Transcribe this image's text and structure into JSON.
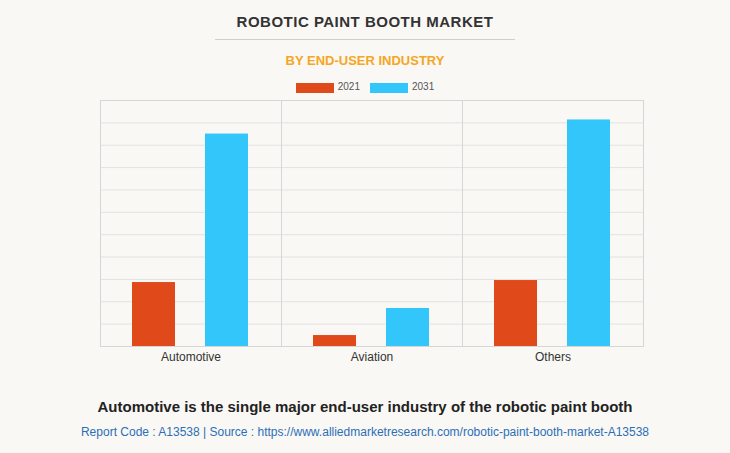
{
  "chart_data": {
    "type": "bar",
    "title": "ROBOTIC PAINT BOOTH MARKET",
    "subtitle": "BY END-USER INDUSTRY",
    "caption": "Automotive is the single major end-user industry of the robotic paint booth",
    "note": "Report Code : A13538  |  Source : https://www.alliedmarketresearch.com/robotic-paint-booth-market-A13538",
    "categories": [
      "Automotive",
      "Aviation",
      "Others"
    ],
    "series": [
      {
        "name": "2021",
        "color": "#e04a1a",
        "values": [
          2.86,
          0.49,
          2.95
        ]
      },
      {
        "name": "2031",
        "color": "#33c6fb",
        "values": [
          9.5,
          1.7,
          10.13
        ]
      }
    ],
    "ylim": [
      0,
      11
    ],
    "yticks": [
      0,
      1,
      2,
      3,
      4,
      5,
      6,
      7,
      8,
      9,
      10,
      11
    ],
    "grid": true,
    "legend": "top",
    "tick_labels": "x"
  }
}
